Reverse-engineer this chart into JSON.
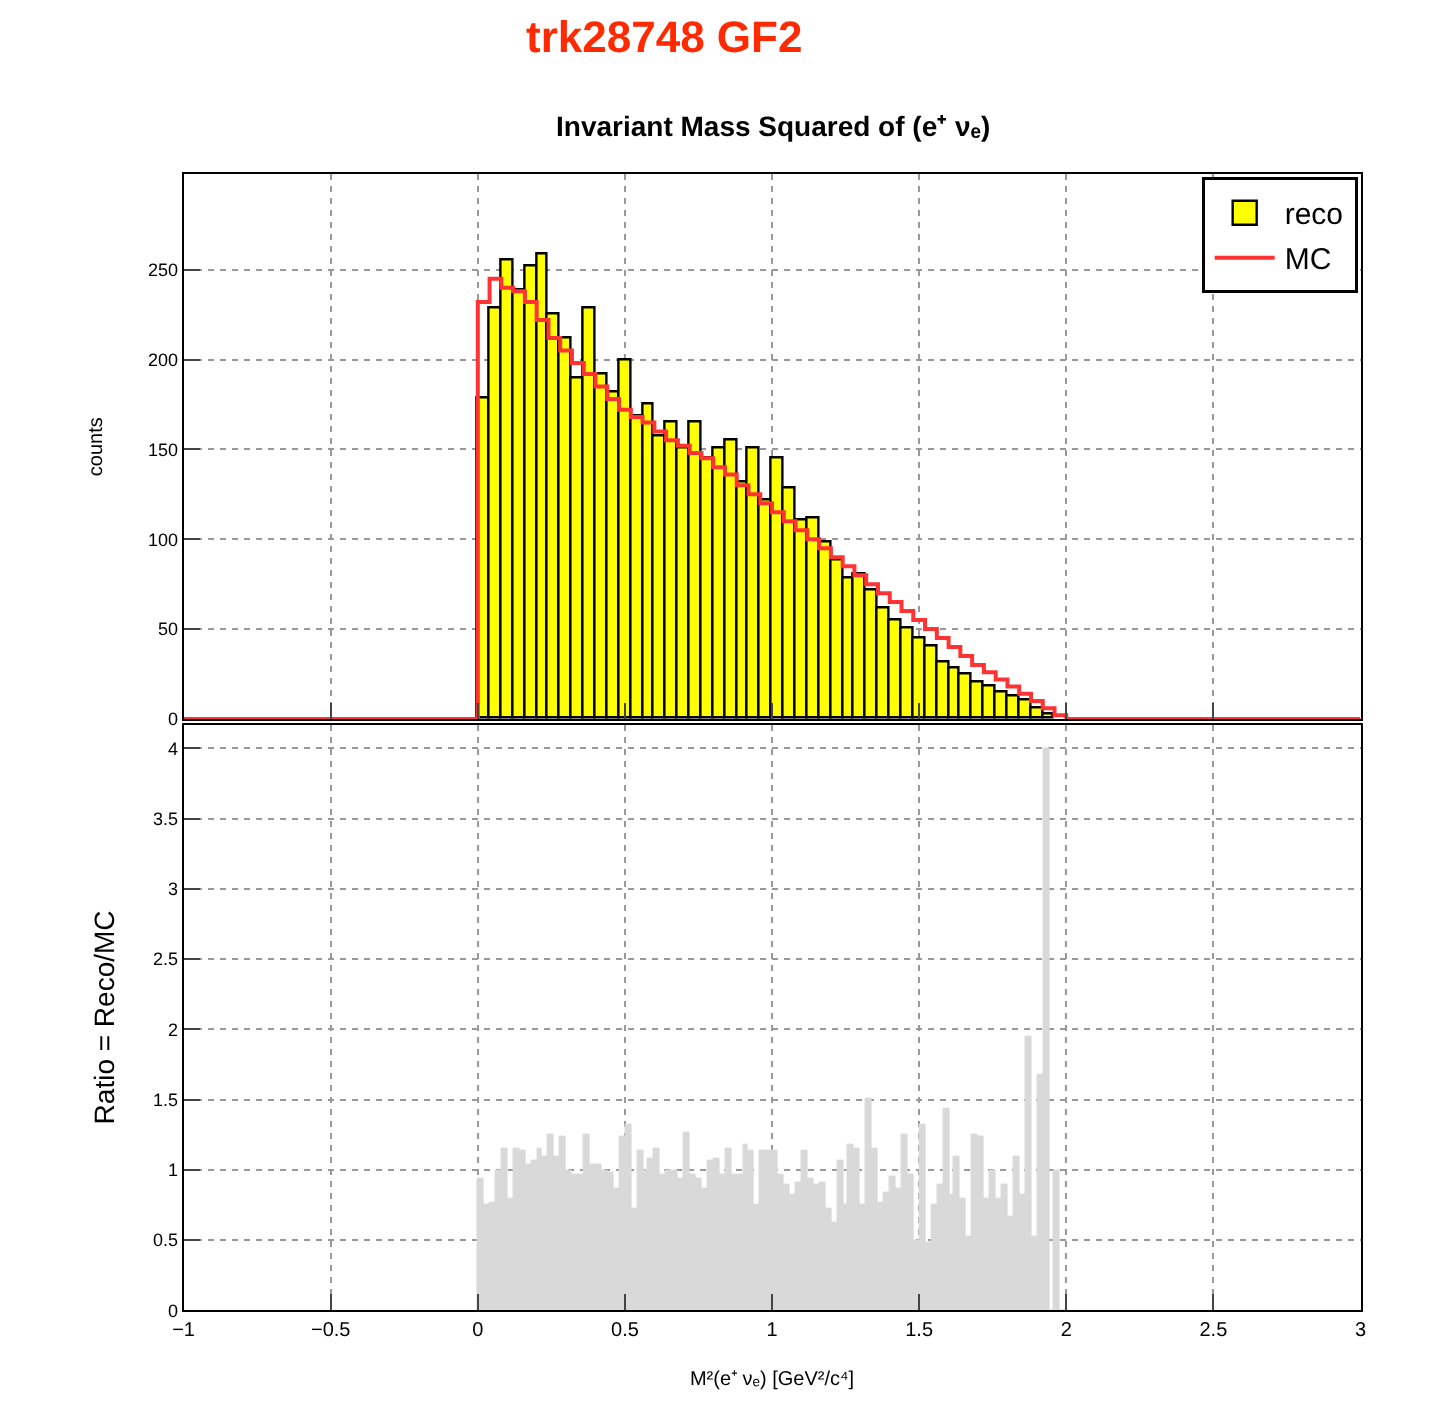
{
  "chart_data": [
    {
      "type": "histogram",
      "title": "Invariant Mass Squared of (e⁺ νₑ)",
      "ylabel": "counts",
      "annotations": [
        "trk28748 GF2"
      ],
      "bins": [
        0,
        0.04,
        0.08,
        0.12,
        0.16,
        0.2,
        0.24,
        0.28,
        0.32,
        0.36,
        0.4,
        0.44,
        0.48,
        0.52,
        0.56,
        0.6,
        0.64,
        0.68,
        0.72,
        0.76,
        0.8,
        0.84,
        0.88,
        0.92,
        0.96,
        1.0,
        1.04,
        1.08,
        1.12,
        1.16,
        1.2,
        1.24,
        1.28,
        1.32,
        1.36,
        1.4,
        1.44,
        1.48,
        1.52,
        1.56,
        1.6,
        1.64,
        1.68,
        1.72,
        1.76,
        1.8,
        1.84,
        1.88,
        1.92,
        1.96,
        2.0
      ],
      "series": [
        {
          "name": "reco",
          "color": "#ffff00",
          "values": [
            178,
            228,
            255,
            238,
            252,
            258,
            225,
            212,
            190,
            228,
            192,
            182,
            200,
            168,
            175,
            157,
            165,
            150,
            165,
            145,
            150,
            155,
            132,
            150,
            122,
            145,
            128,
            110,
            112,
            98,
            88,
            78,
            80,
            72,
            62,
            55,
            50,
            45,
            40,
            32,
            28,
            25,
            20,
            18,
            15,
            12,
            10,
            6,
            3,
            null
          ]
        },
        {
          "name": "MC",
          "color": "#ff3333",
          "type": "step",
          "x": [
            -1,
            0,
            0.04,
            0.08,
            0.12,
            0.16,
            0.2,
            0.24,
            0.28,
            0.32,
            0.36,
            0.4,
            0.44,
            0.48,
            0.52,
            0.56,
            0.6,
            0.64,
            0.68,
            0.72,
            0.76,
            0.8,
            0.84,
            0.88,
            0.92,
            0.96,
            1.0,
            1.04,
            1.08,
            1.12,
            1.16,
            1.2,
            1.24,
            1.28,
            1.32,
            1.36,
            1.4,
            1.44,
            1.48,
            1.52,
            1.56,
            1.6,
            1.64,
            1.68,
            1.72,
            1.76,
            1.8,
            1.84,
            1.88,
            1.92,
            1.96,
            2.0,
            3
          ],
          "values": [
            0,
            232,
            245,
            240,
            238,
            232,
            222,
            212,
            205,
            198,
            192,
            185,
            178,
            172,
            168,
            165,
            160,
            155,
            152,
            148,
            145,
            140,
            136,
            130,
            125,
            120,
            115,
            110,
            105,
            100,
            95,
            90,
            85,
            80,
            75,
            70,
            65,
            60,
            55,
            50,
            45,
            40,
            35,
            30,
            26,
            22,
            18,
            14,
            10,
            6,
            2,
            0,
            0
          ]
        }
      ],
      "xlim": [
        -1,
        3
      ],
      "xticks": [
        -1,
        -0.5,
        0,
        0.5,
        1,
        1.5,
        2,
        2.5,
        3
      ],
      "ylim": [
        0,
        303
      ],
      "yticks": [
        0,
        50,
        100,
        150,
        200,
        250
      ],
      "tick_labels": "y",
      "grid": true,
      "legend": "top right"
    },
    {
      "type": "histogram",
      "xlabel": "M²(e⁺ νₑ) [GeV²/c⁴]",
      "ylabel": "Ratio = Reco/MC",
      "color": "#d9d9d9",
      "bins": [
        0,
        0.02,
        0.04,
        0.06,
        0.08,
        0.1,
        0.12,
        0.14,
        0.16,
        0.18,
        0.2,
        0.22,
        0.24,
        0.26,
        0.28,
        0.3,
        0.32,
        0.34,
        0.36,
        0.38,
        0.4,
        0.42,
        0.44,
        0.46,
        0.48,
        0.5,
        0.52,
        0.54,
        0.56,
        0.58,
        0.6,
        0.62,
        0.64,
        0.66,
        0.68,
        0.7,
        0.72,
        0.74,
        0.76,
        0.78,
        0.8,
        0.82,
        0.84,
        0.86,
        0.88,
        0.9,
        0.92,
        0.94,
        0.96,
        0.98,
        1.0,
        1.02,
        1.04,
        1.06,
        1.08,
        1.1,
        1.12,
        1.14,
        1.16,
        1.18,
        1.2,
        1.22,
        1.24,
        1.26,
        1.28,
        1.3,
        1.32,
        1.34,
        1.36,
        1.38,
        1.4,
        1.42,
        1.44,
        1.46,
        1.48,
        1.5,
        1.52,
        1.54,
        1.56,
        1.58,
        1.6,
        1.62,
        1.64,
        1.66,
        1.68,
        1.7,
        1.72,
        1.74,
        1.76,
        1.78,
        1.8,
        1.82,
        1.84,
        1.86,
        1.88,
        1.9,
        1.92,
        1.94,
        1.96,
        1.98,
        2.0
      ],
      "values": [
        0.94,
        0.75,
        0.77,
        1.0,
        1.15,
        0.79,
        1.15,
        1.13,
        1.03,
        1.06,
        1.15,
        1.1,
        1.25,
        1.1,
        1.23,
        1.0,
        0.96,
        0.96,
        1.25,
        1.03,
        1.03,
        1.0,
        0.98,
        0.87,
        1.23,
        1.32,
        0.72,
        1.13,
        1.0,
        1.08,
        1.15,
        0.96,
        1.0,
        1.0,
        0.94,
        1.27,
        0.96,
        0.94,
        0.87,
        1.06,
        1.08,
        0.96,
        1.15,
        0.96,
        0.96,
        1.18,
        1.13,
        0.75,
        1.13,
        1.13,
        1.13,
        0.96,
        0.89,
        0.82,
        0.91,
        1.13,
        0.94,
        0.9,
        0.91,
        0.72,
        0.63,
        1.06,
        0.75,
        1.18,
        1.15,
        0.75,
        1.51,
        1.15,
        0.77,
        0.84,
        0.95,
        0.87,
        1.25,
        0.96,
        0.5,
        1.32,
        0.48,
        0.75,
        0.89,
        1.44,
        0.82,
        1.1,
        0.79,
        0.53,
        1.25,
        1.23,
        0.79,
        1.0,
        0.79,
        0.9,
        0.66,
        1.1,
        0.82,
        1.95,
        0.53,
        1.68,
        4.0,
        0,
        1.0,
        0
      ],
      "xlim": [
        -1,
        3
      ],
      "xticks": [
        -1,
        -0.5,
        0,
        0.5,
        1,
        1.5,
        2,
        2.5,
        3
      ],
      "ylim": [
        0,
        4.17
      ],
      "yticks": [
        0,
        0.5,
        1,
        1.5,
        2,
        2.5,
        3,
        3.5,
        4
      ],
      "grid": true
    }
  ]
}
